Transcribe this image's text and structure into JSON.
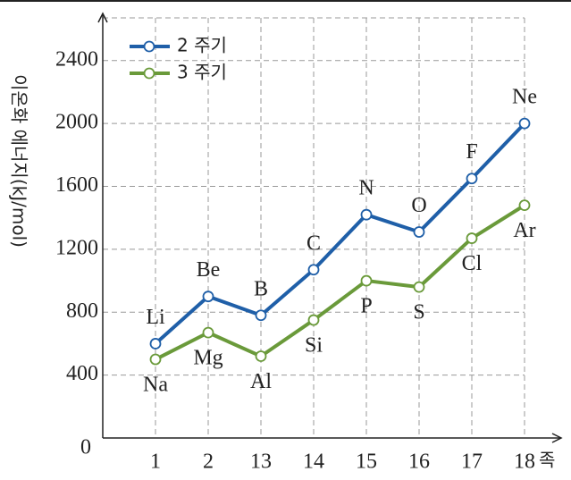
{
  "chart_data": {
    "type": "line",
    "y_label": "이온화 에너지(kJ/mol)",
    "x_label": "족",
    "categories": [
      "1",
      "2",
      "13",
      "14",
      "15",
      "16",
      "17",
      "18"
    ],
    "series": [
      {
        "name": "2 주기",
        "color": "#1f5fa8",
        "values": [
          600,
          900,
          780,
          1070,
          1420,
          1310,
          1650,
          2000
        ],
        "point_labels": [
          "Li",
          "Be",
          "B",
          "C",
          "N",
          "O",
          "F",
          "Ne"
        ],
        "label_position": "above"
      },
      {
        "name": "3 주기",
        "color": "#6a9a3a",
        "values": [
          500,
          670,
          520,
          750,
          1000,
          960,
          1270,
          1480
        ],
        "point_labels": [
          "Na",
          "Mg",
          "Al",
          "Si",
          "P",
          "S",
          "Cl",
          "Ar"
        ],
        "label_position": "below"
      }
    ],
    "ylim": [
      0,
      2700
    ],
    "yticks": [
      0,
      400,
      800,
      1200,
      1600,
      2000,
      2400
    ],
    "grid": true,
    "legend": "upper-left"
  }
}
